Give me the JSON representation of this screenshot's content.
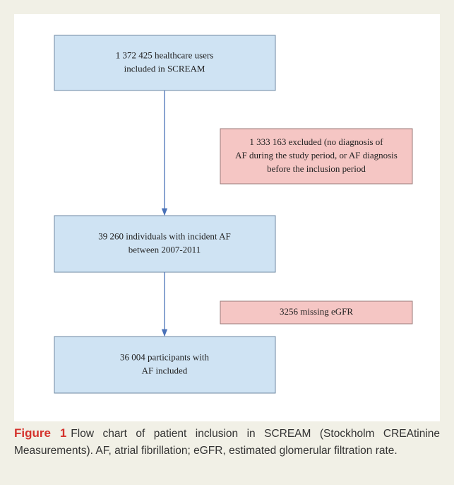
{
  "nodes": [
    {
      "lines": [
        "1 372 425 healthcare users",
        "included in SCREAM"
      ]
    },
    {
      "lines": [
        "1 333 163 excluded (no diagnosis of",
        "AF during the study period, or AF diagnosis",
        "before the inclusion period"
      ]
    },
    {
      "lines": [
        "39 260 individuals with incident AF",
        "between 2007-2011"
      ]
    },
    {
      "lines": [
        "3256 missing eGFR"
      ]
    },
    {
      "lines": [
        "36 004 participants with",
        "AF included"
      ]
    }
  ],
  "caption": {
    "label": "Figure 1",
    "text": "Flow chart of patient inclusion in SCREAM (Stockholm CREAtinine Measurements). AF, atrial fibrillation; eGFR, estimated glomerular filtration rate."
  }
}
